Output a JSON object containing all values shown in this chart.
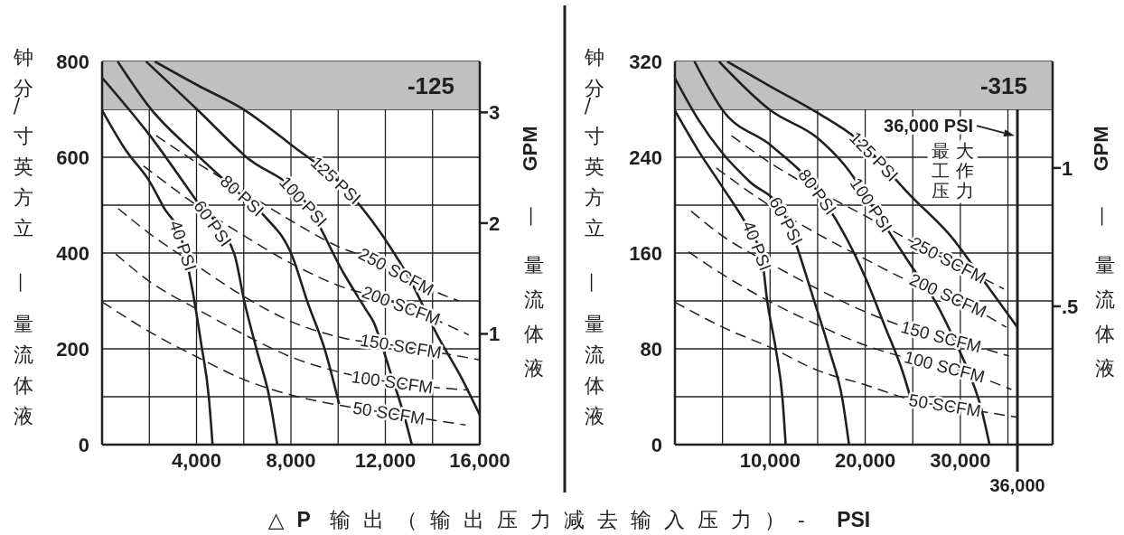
{
  "chart_data": [
    {
      "type": "line",
      "xlabel": "△P 输出（输出压力减去输入压力）- PSI",
      "ylabel": "液体流量 — 立方英寸/分钟",
      "y2label": "液体流量 — GPM",
      "xlim": [
        0,
        16000
      ],
      "xticks": [
        {
          "value": 0,
          "label": null
        },
        {
          "value": 2000,
          "label": null
        },
        {
          "value": 4000,
          "label": "4,000"
        },
        {
          "value": 6000,
          "label": null
        },
        {
          "value": 8000,
          "label": "8,000"
        },
        {
          "value": 10000,
          "label": null
        },
        {
          "value": 12000,
          "label": "12,000"
        },
        {
          "value": 14000,
          "label": null
        },
        {
          "value": 16000,
          "label": "16,000"
        }
      ],
      "ylim": [
        0,
        800
      ],
      "yticks": [
        0,
        {
          "value": 100,
          "label": null
        },
        200,
        {
          "value": 300,
          "label": null
        },
        400,
        {
          "value": 500,
          "label": null
        },
        600,
        {
          "value": 700,
          "label": null
        },
        800
      ],
      "y2lim": [
        0,
        3.46
      ],
      "y2ticks": [
        1,
        2,
        3
      ],
      "grid": true,
      "bands": [
        {
          "axis": "y",
          "from": 700,
          "to": 800,
          "label": "-125",
          "color": "#c0c0c0"
        }
      ],
      "series": [
        {
          "name": "40 PSI",
          "color": "#231f20",
          "line_style": "solid",
          "x": [
            0,
            1000,
            2030,
            2600,
            3360,
            3800,
            4200,
            4520,
            4680
          ],
          "values": [
            698,
            615,
            548,
            496,
            430,
            330,
            210,
            100,
            0
          ]
        },
        {
          "name": "60 PSI",
          "color": "#231f20",
          "line_style": "solid",
          "x": [
            0,
            2030,
            4000,
            5600,
            6030,
            6560,
            7100,
            7420
          ],
          "values": [
            766,
            645,
            509,
            398,
            298,
            196,
            95,
            0
          ]
        },
        {
          "name": "80 PSI",
          "color": "#231f20",
          "line_style": "solid",
          "x": [
            660,
            2030,
            4060,
            6050,
            6880,
            8060,
            8700,
            9450,
            10040
          ],
          "values": [
            800,
            703,
            603,
            514,
            477,
            393,
            298,
            196,
            85
          ]
        },
        {
          "name": "100 PSI",
          "color": "#231f20",
          "line_style": "solid",
          "x": [
            1860,
            4060,
            6050,
            8710,
            10220,
            11200,
            11520,
            11840,
            12260,
            12800,
            13120
          ],
          "values": [
            800,
            698,
            603,
            500,
            359,
            280,
            254,
            209,
            144,
            60,
            0
          ]
        },
        {
          "name": "125 PSI",
          "color": "#231f20",
          "line_style": "solid",
          "x": [
            2230,
            4060,
            6050,
            8060,
            10240,
            12120,
            12970,
            14250,
            15220,
            16000
          ],
          "values": [
            800,
            750,
            698,
            624,
            538,
            419,
            351,
            224,
            140,
            62
          ]
        },
        {
          "name": "250 SCFM",
          "color": "#231f20",
          "line_style": "dashed",
          "x": [
            2290,
            4060,
            6050,
            8060,
            9980,
            11690,
            13400,
            15110
          ],
          "values": [
            645,
            587,
            527,
            466,
            414,
            382,
            335,
            300
          ]
        },
        {
          "name": "200 SCFM",
          "color": "#231f20",
          "line_style": "dashed",
          "x": [
            1750,
            4060,
            6050,
            8060,
            10190,
            11900,
            13610,
            15540
          ],
          "values": [
            582,
            498,
            435,
            377,
            329,
            305,
            272,
            229
          ]
        },
        {
          "name": "150 SCFM",
          "color": "#231f20",
          "line_style": "dashed",
          "x": [
            680,
            2030,
            4060,
            6050,
            8060,
            10090,
            12690,
            16000
          ],
          "values": [
            493,
            440,
            372,
            308,
            256,
            224,
            205,
            177
          ]
        },
        {
          "name": "100 SCFM",
          "color": "#231f20",
          "line_style": "dashed",
          "x": [
            580,
            2030,
            4060,
            6050,
            8060,
            10090,
            12000,
            15540
          ],
          "values": [
            398,
            340,
            282,
            229,
            182,
            151,
            132,
            114
          ]
        },
        {
          "name": "50 SCFM",
          "color": "#231f20",
          "line_style": "dashed",
          "x": [
            0,
            2030,
            4060,
            6050,
            8060,
            10090,
            12100,
            15400
          ],
          "values": [
            298,
            235,
            182,
            135,
            103,
            82,
            66,
            41
          ]
        }
      ]
    },
    {
      "type": "line",
      "ylabel": "液体流量 — 立方英寸/分钟",
      "y2label": "液体流量 — GPM",
      "xlim": [
        0,
        39700
      ],
      "xticks": [
        {
          "value": 0,
          "label": null
        },
        {
          "value": 5000,
          "label": null
        },
        {
          "value": 10000,
          "label": "10,000"
        },
        {
          "value": 15000,
          "label": null
        },
        {
          "value": 20000,
          "label": "20,000"
        },
        {
          "value": 25000,
          "label": null
        },
        {
          "value": 30000,
          "label": "30,000"
        },
        {
          "value": 35000,
          "label": null
        }
      ],
      "ylim": [
        0,
        320
      ],
      "yticks": [
        0,
        {
          "value": 40,
          "label": null
        },
        80,
        {
          "value": 120,
          "label": null
        },
        160,
        {
          "value": 200,
          "label": null
        },
        240,
        {
          "value": 280,
          "label": null
        },
        320
      ],
      "y2lim": [
        0,
        1.385
      ],
      "y2ticks": [
        {
          "value": 0.5,
          "label": ".5"
        },
        1
      ],
      "grid": true,
      "bands": [
        {
          "axis": "y",
          "from": 280,
          "to": 320,
          "label": "-315",
          "color": "#c0c0c0"
        }
      ],
      "ref_lines": [
        {
          "axis": "x",
          "value": 36000,
          "label": "36,000",
          "color": "#231f20"
        }
      ],
      "annotations": [
        {
          "text": "36,000 PSI",
          "x": 36000,
          "y": 258
        },
        "最大工作压力"
      ],
      "series": [
        {
          "name": "40 PSI",
          "color": "#231f20",
          "line_style": "solid",
          "x": [
            0,
            2500,
            5000,
            7770,
            9100,
            9700,
            10640,
            11300,
            11640
          ],
          "values": [
            279,
            245,
            215,
            180,
            158,
            120,
            78,
            39,
            0
          ]
        },
        {
          "name": "60 PSI",
          "color": "#231f20",
          "line_style": "solid",
          "x": [
            0,
            2490,
            5040,
            7800,
            11300,
            14680,
            16270,
            17600,
            18300
          ],
          "values": [
            306,
            271,
            243,
            220,
            195,
            119,
            78,
            38,
            0
          ]
        },
        {
          "name": "80 PSI",
          "color": "#231f20",
          "line_style": "solid",
          "x": [
            2050,
            5040,
            10070,
            14750,
            19990,
            22110,
            23970,
            24920
          ],
          "values": [
            320,
            279,
            250,
            214,
            140,
            98,
            60,
            35
          ]
        },
        {
          "name": "100 PSI",
          "color": "#231f20",
          "line_style": "solid",
          "x": [
            4630,
            10070,
            15000,
            17870,
            21570,
            24700,
            27400,
            29520,
            31110,
            32170,
            33070
          ],
          "values": [
            320,
            279,
            256,
            233,
            189,
            151,
            119,
            85,
            56,
            31,
            0
          ]
        },
        {
          "name": "125 PSI",
          "color": "#231f20",
          "line_style": "solid",
          "x": [
            5490,
            10070,
            15000,
            19190,
            24750,
            29000,
            32170,
            36000
          ],
          "values": [
            320,
            299,
            277,
            255,
            208,
            174,
            140,
            98
          ]
        },
        {
          "name": "250 SCFM",
          "color": "#231f20",
          "line_style": "dashed",
          "x": [
            5940,
            10070,
            15000,
            19990,
            25300,
            34580
          ],
          "values": [
            258,
            235,
            212,
            191,
            168,
            130
          ]
        },
        {
          "name": "200 SCFM",
          "color": "#231f20",
          "line_style": "dashed",
          "x": [
            4350,
            10070,
            15000,
            19990,
            24230,
            28850,
            34840
          ],
          "values": [
            231,
            199,
            176,
            155,
            138,
            124,
            98
          ]
        },
        {
          "name": "150 SCFM",
          "color": "#231f20",
          "line_style": "dashed",
          "x": [
            1700,
            5040,
            10070,
            15000,
            19990,
            25030,
            29910,
            35100
          ],
          "values": [
            195,
            174,
            151,
            130,
            111,
            96,
            86,
            74
          ]
        },
        {
          "name": "100 SCFM",
          "color": "#231f20",
          "line_style": "dashed",
          "x": [
            1430,
            5040,
            10070,
            15000,
            19990,
            25030,
            29910,
            35370
          ],
          "values": [
            161,
            142,
            119,
            100,
            83,
            71,
            62,
            46
          ]
        },
        {
          "name": "50 SCFM",
          "color": "#231f20",
          "line_style": "dashed",
          "x": [
            0,
            5040,
            10070,
            15000,
            19990,
            25030,
            30440,
            35900
          ],
          "values": [
            119,
            98,
            81,
            62,
            50,
            37,
            30,
            23
          ]
        }
      ]
    }
  ]
}
